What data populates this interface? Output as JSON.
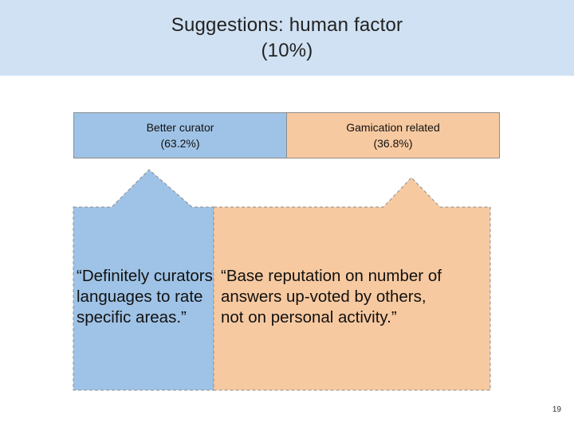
{
  "slide": {
    "title_line1": "Suggestions: human factor",
    "title_line2": "(10%)",
    "page_number": "19"
  },
  "categories": [
    {
      "label": "Better curator",
      "percent": "(63.2%)",
      "color": "#9fc3e6"
    },
    {
      "label": "Gamication related",
      "percent": "(36.8%)",
      "color": "#f7c9a0"
    }
  ],
  "quotes": {
    "curator": {
      "lines": [
        "“Definitely curators with",
        "languages to rate",
        "specific areas.”"
      ]
    },
    "gamification": {
      "lines": [
        "“Base reputation on number of",
        "answers up-voted by others,",
        "not on personal activity.”"
      ]
    }
  }
}
